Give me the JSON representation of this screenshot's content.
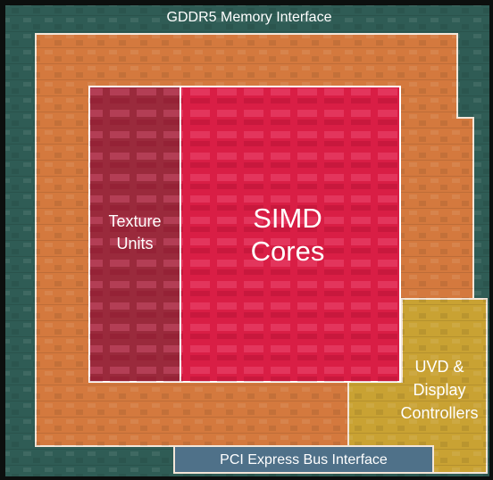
{
  "labels": {
    "memory": "GDDR5 Memory Interface",
    "texture": [
      "Texture",
      "Units"
    ],
    "simd": [
      "SIMD",
      "Cores"
    ],
    "uvd": [
      "UVD &",
      "Display",
      "Controllers"
    ],
    "pci": "PCI Express Bus Interface"
  }
}
